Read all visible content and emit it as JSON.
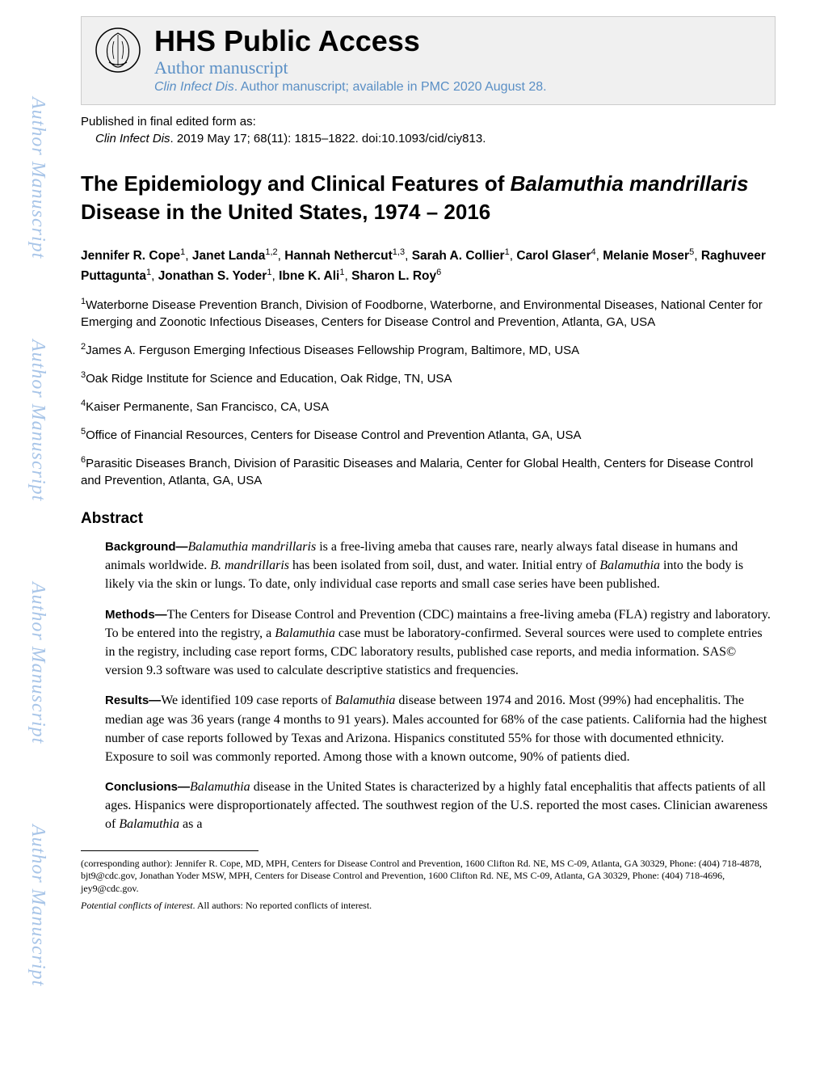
{
  "watermark_text": "Author Manuscript",
  "header": {
    "hhs_title": "HHS Public Access",
    "author_manuscript": "Author manuscript",
    "journal_name": "Clin Infect Dis",
    "journal_suffix": ". Author manuscript; available in PMC 2020 August 28."
  },
  "publication": {
    "line1": "Published in final edited form as:",
    "journal": "Clin Infect Dis",
    "citation": ". 2019 May 17; 68(11): 1815–1822. doi:10.1093/cid/ciy813."
  },
  "title": {
    "part1": "The Epidemiology and Clinical Features of ",
    "italic1": "Balamuthia mandrillaris",
    "part2": " Disease in the United States, 1974 – 2016"
  },
  "authors": [
    {
      "name": "Jennifer R. Cope",
      "sup": "1"
    },
    {
      "name": "Janet Landa",
      "sup": "1,2"
    },
    {
      "name": "Hannah Nethercut",
      "sup": "1,3"
    },
    {
      "name": "Sarah A. Collier",
      "sup": "1"
    },
    {
      "name": "Carol Glaser",
      "sup": "4"
    },
    {
      "name": "Melanie Moser",
      "sup": "5"
    },
    {
      "name": "Raghuveer Puttagunta",
      "sup": "1"
    },
    {
      "name": "Jonathan S. Yoder",
      "sup": "1"
    },
    {
      "name": "Ibne K. Ali",
      "sup": "1"
    },
    {
      "name": "Sharon L. Roy",
      "sup": "6"
    }
  ],
  "affiliations": [
    {
      "sup": "1",
      "text": "Waterborne Disease Prevention Branch, Division of Foodborne, Waterborne, and Environmental Diseases, National Center for Emerging and Zoonotic Infectious Diseases, Centers for Disease Control and Prevention, Atlanta, GA, USA"
    },
    {
      "sup": "2",
      "text": "James A. Ferguson Emerging Infectious Diseases Fellowship Program, Baltimore, MD, USA"
    },
    {
      "sup": "3",
      "text": "Oak Ridge Institute for Science and Education, Oak Ridge, TN, USA"
    },
    {
      "sup": "4",
      "text": "Kaiser Permanente, San Francisco, CA, USA"
    },
    {
      "sup": "5",
      "text": "Office of Financial Resources, Centers for Disease Control and Prevention Atlanta, GA, USA"
    },
    {
      "sup": "6",
      "text": "Parasitic Diseases Branch, Division of Parasitic Diseases and Malaria, Center for Global Health, Centers for Disease Control and Prevention, Atlanta, GA, USA"
    }
  ],
  "abstract": {
    "title": "Abstract",
    "background": {
      "label": "Background—",
      "italic1": "Balamuthia mandrillaris",
      "text1": " is a free-living ameba that causes rare, nearly always fatal disease in humans and animals worldwide. ",
      "italic2": "B. mandrillaris",
      "text2": " has been isolated from soil, dust, and water. Initial entry of ",
      "italic3": "Balamuthia",
      "text3": " into the body is likely via the skin or lungs. To date, only individual case reports and small case series have been published."
    },
    "methods": {
      "label": "Methods—",
      "text1": "The Centers for Disease Control and Prevention (CDC) maintains a free-living ameba (FLA) registry and laboratory. To be entered into the registry, a ",
      "italic1": "Balamuthia",
      "text2": " case must be laboratory-confirmed. Several sources were used to complete entries in the registry, including case report forms, CDC laboratory results, published case reports, and media information. SAS© version 9.3 software was used to calculate descriptive statistics and frequencies."
    },
    "results": {
      "label": "Results—",
      "text1": "We identified 109 case reports of ",
      "italic1": "Balamuthia",
      "text2": " disease between 1974 and 2016. Most (99%) had encephalitis. The median age was 36 years (range 4 months to 91 years). Males accounted for 68% of the case patients. California had the highest number of case reports followed by Texas and Arizona. Hispanics constituted 55% for those with documented ethnicity. Exposure to soil was commonly reported. Among those with a known outcome, 90% of patients died."
    },
    "conclusions": {
      "label": "Conclusions—",
      "italic1": "Balamuthia",
      "text1": " disease in the United States is characterized by a highly fatal encephalitis that affects patients of all ages. Hispanics were disproportionately affected. The southwest region of the U.S. reported the most cases. Clinician awareness of ",
      "italic2": "Balamuthia",
      "text2": " as a"
    }
  },
  "footer": {
    "corresponding": "(corresponding author): Jennifer R. Cope, MD, MPH, Centers for Disease Control and Prevention, 1600 Clifton Rd. NE, MS C-09, Atlanta, GA 30329, Phone: (404) 718-4878, bjt9@cdc.gov, Jonathan Yoder MSW, MPH, Centers for Disease Control and Prevention, 1600 Clifton Rd. NE, MS C-09, Atlanta, GA 30329, Phone: (404) 718-4696, jey9@cdc.gov.",
    "conflicts_label": "Potential conflicts of interest",
    "conflicts_text": ". All authors: No reported conflicts of interest."
  },
  "colors": {
    "watermark": "#a8c5e8",
    "header_blue": "#5a8fc5",
    "header_bg": "#f0f0f0",
    "header_border": "#cccccc",
    "text": "#000000"
  }
}
